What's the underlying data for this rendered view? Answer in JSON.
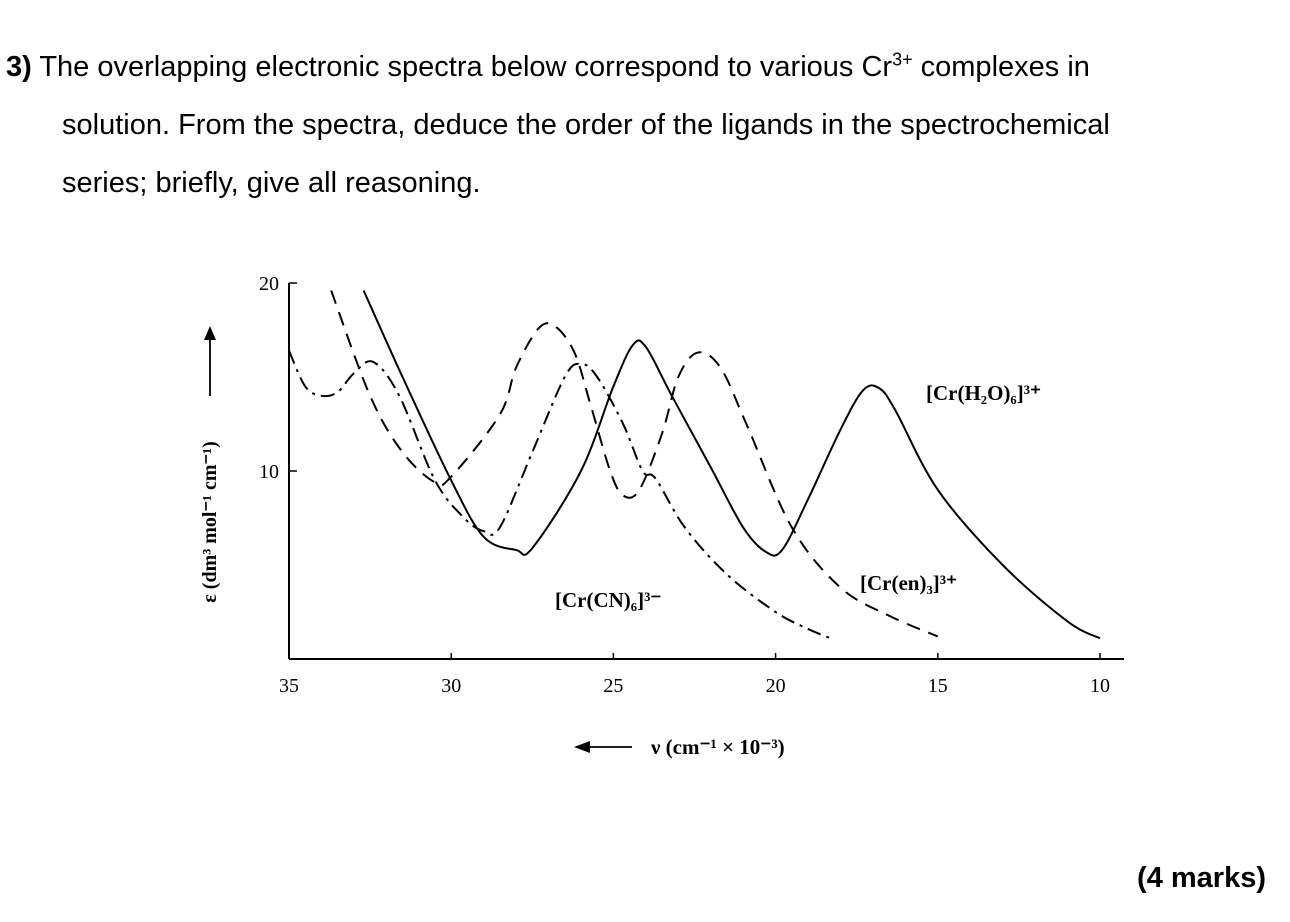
{
  "question": {
    "number": "3)",
    "line1": "The overlapping electronic spectra below correspond to various Cr",
    "line1_sup": "3+",
    "line1_end": " complexes in",
    "line2": "solution. From the spectra, deduce the order of the ligands in the spectrochemical",
    "line3": "series; briefly, give all reasoning."
  },
  "marks": "(4 marks)",
  "chart_data": {
    "type": "line",
    "xlabel": "ν (cm⁻¹ × 10⁻³)",
    "ylabel": "ε (dm³ mol⁻¹ cm⁻¹)",
    "xlim": [
      35,
      10
    ],
    "ylim": [
      0,
      20
    ],
    "x_ticks": [
      "35",
      "30",
      "25",
      "20",
      "15",
      "10"
    ],
    "y_ticks": [
      "20",
      "10"
    ],
    "grid": false,
    "series": [
      {
        "name": "[Cr(H₂O)₆]³⁺",
        "style": "solid",
        "points": [
          [
            32.7,
            19.6
          ],
          [
            31.5,
            15.0
          ],
          [
            30,
            9.5
          ],
          [
            29,
            6.5
          ],
          [
            28,
            5.8
          ],
          [
            27.5,
            5.9
          ],
          [
            26,
            10.0
          ],
          [
            25,
            14.5
          ],
          [
            24.4,
            16.7
          ],
          [
            24,
            16.6
          ],
          [
            23.2,
            14.0
          ],
          [
            22,
            10.2
          ],
          [
            21,
            7.0
          ],
          [
            20.3,
            5.7
          ],
          [
            19.8,
            5.8
          ],
          [
            19,
            8.5
          ],
          [
            18,
            12.2
          ],
          [
            17.3,
            14.3
          ],
          [
            16.8,
            14.4
          ],
          [
            16.3,
            13.2
          ],
          [
            15,
            9.0
          ],
          [
            13,
            5.0
          ],
          [
            11,
            2.0
          ],
          [
            10,
            1.1
          ]
        ]
      },
      {
        "name": "[Cr(en)₃]³⁺",
        "style": "dashed",
        "points": [
          [
            33.7,
            19.6
          ],
          [
            32.5,
            14.0
          ],
          [
            31.5,
            11.0
          ],
          [
            30.5,
            9.4
          ],
          [
            30,
            9.7
          ],
          [
            28.5,
            13.0
          ],
          [
            28,
            15.5
          ],
          [
            27.3,
            17.6
          ],
          [
            26.8,
            17.7
          ],
          [
            26.2,
            16.3
          ],
          [
            25.7,
            13.5
          ],
          [
            25.1,
            10.0
          ],
          [
            24.7,
            8.7
          ],
          [
            24.2,
            9.0
          ],
          [
            23.5,
            12.0
          ],
          [
            23,
            15.0
          ],
          [
            22.4,
            16.3
          ],
          [
            21.7,
            15.5
          ],
          [
            20.9,
            12.5
          ],
          [
            19.5,
            7.0
          ],
          [
            18,
            3.8
          ],
          [
            16.5,
            2.3
          ],
          [
            15,
            1.2
          ]
        ]
      },
      {
        "name": "[Cr(CN)₆]³⁻",
        "style": "dashdot",
        "points": [
          [
            35,
            16.4
          ],
          [
            34.5,
            14.5
          ],
          [
            34,
            14.0
          ],
          [
            33.5,
            14.2
          ],
          [
            33,
            15.2
          ],
          [
            32.4,
            15.8
          ],
          [
            31.6,
            14.0
          ],
          [
            30.5,
            9.5
          ],
          [
            29.6,
            7.5
          ],
          [
            29,
            6.8
          ],
          [
            28.5,
            7.0
          ],
          [
            27.5,
            11.0
          ],
          [
            26.5,
            15.0
          ],
          [
            26,
            15.7
          ],
          [
            25.5,
            15.0
          ],
          [
            24.7,
            12.5
          ],
          [
            24.1,
            10.0
          ],
          [
            23.7,
            9.6
          ],
          [
            22.8,
            7.0
          ],
          [
            21.5,
            4.5
          ],
          [
            20,
            2.5
          ],
          [
            19,
            1.6
          ],
          [
            18.3,
            1.1
          ]
        ]
      }
    ],
    "annotations": {
      "h2o_label": "[Cr(H₂O)₆]³⁺",
      "en_label": "[Cr(en)₃]³⁺",
      "cn_label": "[Cr(CN)₆]³⁻"
    }
  }
}
